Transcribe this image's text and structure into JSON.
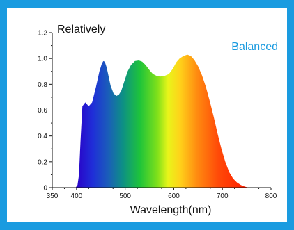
{
  "colors": {
    "frame": "#1a9be0",
    "annotation": "#1a9be0"
  },
  "chart_data": {
    "type": "area",
    "ylabel": "Relatively",
    "xlabel": "Wavelength(nm)",
    "annotation": "Balanced",
    "xlim": [
      350,
      800
    ],
    "ylim": [
      0,
      1.2
    ],
    "grid": false,
    "x_ticks": [
      "350",
      "400",
      "500",
      "600",
      "700",
      "800"
    ],
    "y_ticks": [
      "0",
      "0.2",
      "0.4",
      "0.6",
      "0.8",
      "1.0",
      "1.2"
    ],
    "series": [
      {
        "x": [
          398,
          402,
          405,
          408,
          412,
          418,
          425,
          432,
          440,
          447,
          452,
          455,
          458,
          462,
          466,
          470,
          476,
          482,
          487,
          492,
          498,
          505,
          512,
          520,
          528,
          535,
          542,
          550,
          557,
          565,
          573,
          581,
          590,
          598,
          605,
          612,
          620,
          628,
          635,
          642,
          650,
          658,
          666,
          674,
          682,
          690,
          698,
          706,
          714,
          722,
          730,
          738,
          746,
          752,
          756
        ],
        "y": [
          0,
          0.02,
          0.1,
          0.35,
          0.63,
          0.66,
          0.63,
          0.66,
          0.78,
          0.9,
          0.96,
          0.98,
          0.975,
          0.93,
          0.86,
          0.79,
          0.73,
          0.71,
          0.72,
          0.75,
          0.82,
          0.9,
          0.95,
          0.98,
          0.985,
          0.975,
          0.95,
          0.91,
          0.88,
          0.865,
          0.86,
          0.865,
          0.88,
          0.92,
          0.97,
          1.0,
          1.02,
          1.03,
          1.02,
          0.99,
          0.94,
          0.87,
          0.78,
          0.67,
          0.55,
          0.42,
          0.3,
          0.2,
          0.12,
          0.07,
          0.04,
          0.02,
          0.008,
          0.002,
          0
        ]
      }
    ]
  }
}
